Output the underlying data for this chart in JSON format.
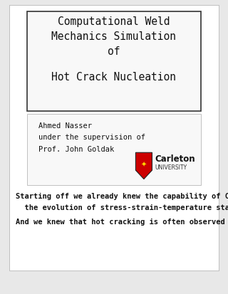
{
  "bg_color": "#e8e8e8",
  "slide_bg": "#ffffff",
  "title_font_size": 10.5,
  "title_font_family": "monospace",
  "author": "Ahmed Nasser",
  "supervision": "under the supervision of",
  "supervisor": "Prof. John Goldak",
  "body_line1": "Starting off we already knew the capability of CWM to determine",
  "body_line2": "  the evolution of stress-strain-temperature state.",
  "body_line4": "And we knew that hot cracking is often observed during welding.",
  "author_font_size": 7.5,
  "body_font_size": 7.5,
  "carleton_font_size": 8.5,
  "carleton_sub_font_size": 5.5
}
